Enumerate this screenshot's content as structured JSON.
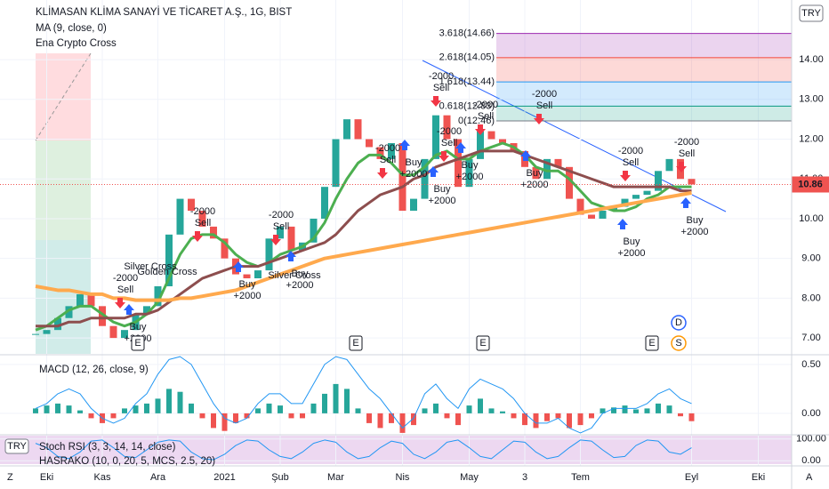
{
  "header": {
    "title": "KLİMASAN KLİMA SANAYİ VE TİCARET A.Ş., 1G, BIST",
    "indicators": [
      "MA (9, close, 0)",
      "Ena Crypto Cross"
    ],
    "currency": "TRY",
    "corner_left": "Z",
    "corner_right": "A"
  },
  "chart_data": [
    {
      "type": "candle-line",
      "categories": [
        null,
        "Eki",
        null,
        null,
        null,
        null,
        "Kas",
        null,
        null,
        null,
        null,
        "Ara",
        null,
        null,
        null,
        null,
        null,
        "2021",
        null,
        null,
        null,
        null,
        "Şub",
        null,
        null,
        null,
        null,
        "Mar",
        null,
        null,
        null,
        null,
        null,
        "Nis",
        null,
        null,
        null,
        null,
        null,
        "May",
        null,
        null,
        null,
        null,
        "3",
        null,
        null,
        null,
        null,
        "Tem",
        null,
        null,
        null,
        null,
        null,
        null,
        null,
        null,
        null,
        "Eyl",
        null,
        null,
        null,
        null,
        null,
        "Eki",
        null,
        null,
        null
      ],
      "ylim": [
        6.6,
        15.5
      ],
      "yticks": [
        {
          "value": 7,
          "label": "7.00"
        },
        {
          "value": 8,
          "label": "8.00"
        },
        {
          "value": 9,
          "label": "9.00"
        },
        {
          "value": 10,
          "label": "10.00"
        },
        {
          "value": 11,
          "label": "11.00"
        },
        {
          "value": 12,
          "label": "12.00"
        },
        {
          "value": 13,
          "label": "13.00"
        },
        {
          "value": 14,
          "label": "14.00"
        }
      ],
      "series": [
        {
          "kind": "candle",
          "color": "#ef5350",
          "up_color": "#26a69a",
          "values": [
            7.1,
            7.2,
            7.5,
            7.8,
            8.1,
            7.8,
            7.3,
            7.0,
            7.2,
            7.6,
            7.8,
            8.3,
            9.6,
            10.5,
            10.2,
            9.8,
            9.5,
            9.0,
            8.6,
            8.5,
            8.7,
            9.5,
            9.8,
            9.2,
            9.4,
            10.0,
            10.8,
            12.0,
            12.5,
            12.0,
            11.8,
            11.5,
            11.9,
            10.2,
            10.5,
            11.5,
            12.6,
            12.0,
            10.8,
            11.5,
            12.2,
            12.0,
            11.9,
            11.7,
            11.3,
            11.0,
            11.5,
            11.3,
            10.5,
            10.1,
            10.0,
            10.2,
            10.3,
            10.5,
            10.6,
            10.7,
            11.2,
            11.5,
            11.0,
            10.86,
            null,
            null,
            null,
            null,
            null,
            null,
            null,
            null,
            null
          ]
        },
        {
          "kind": "line",
          "color": "#4caf50",
          "width": 3,
          "values": [
            7.2,
            7.3,
            7.5,
            7.7,
            7.8,
            7.8,
            7.6,
            7.4,
            7.3,
            7.4,
            7.6,
            7.9,
            8.5,
            9.1,
            9.5,
            9.6,
            9.6,
            9.4,
            9.1,
            8.9,
            8.8,
            8.9,
            9.1,
            9.2,
            9.3,
            9.5,
            9.9,
            10.5,
            11.0,
            11.4,
            11.6,
            11.6,
            11.4,
            11.1,
            11.1,
            11.3,
            11.6,
            11.7,
            11.5,
            11.5,
            11.7,
            11.8,
            11.9,
            11.8,
            11.6,
            11.3,
            11.2,
            11.2,
            11.0,
            10.7,
            10.4,
            10.3,
            10.2,
            10.2,
            10.3,
            10.5,
            10.6,
            10.8,
            10.8,
            10.8,
            null,
            null,
            null,
            null,
            null,
            null,
            null,
            null,
            null
          ]
        },
        {
          "kind": "line",
          "color": "#8d4e4e",
          "width": 3,
          "values": [
            7.3,
            7.3,
            7.3,
            7.4,
            7.4,
            7.5,
            7.5,
            7.5,
            7.5,
            7.6,
            7.6,
            7.7,
            7.9,
            8.1,
            8.3,
            8.5,
            8.6,
            8.7,
            8.8,
            8.8,
            8.8,
            8.9,
            9.0,
            9.1,
            9.2,
            9.3,
            9.4,
            9.6,
            9.9,
            10.2,
            10.4,
            10.6,
            10.7,
            10.8,
            11.0,
            11.1,
            11.3,
            11.4,
            11.5,
            11.6,
            11.7,
            11.7,
            11.7,
            11.7,
            11.6,
            11.5,
            11.4,
            11.3,
            11.2,
            11.1,
            11.0,
            10.9,
            10.8,
            10.8,
            10.8,
            10.8,
            10.8,
            10.8,
            10.7,
            10.7,
            null,
            null,
            null,
            null,
            null,
            null,
            null,
            null,
            null
          ]
        },
        {
          "kind": "line",
          "color": "#ffa94d",
          "width": 4,
          "values": [
            8.3,
            8.25,
            8.2,
            8.2,
            8.15,
            8.1,
            8.1,
            8.0,
            8.0,
            7.95,
            7.95,
            7.95,
            7.95,
            8.0,
            8.0,
            8.05,
            8.1,
            8.15,
            8.2,
            8.3,
            8.4,
            8.5,
            8.6,
            8.7,
            8.8,
            8.9,
            9.0,
            9.05,
            9.1,
            9.15,
            9.2,
            9.25,
            9.3,
            9.35,
            9.4,
            9.45,
            9.5,
            9.55,
            9.6,
            9.65,
            9.7,
            9.75,
            9.8,
            9.85,
            9.9,
            9.95,
            10.0,
            10.05,
            10.1,
            10.15,
            10.2,
            10.25,
            10.3,
            10.35,
            10.4,
            10.45,
            10.5,
            10.55,
            10.6,
            10.65,
            null,
            null,
            null,
            null,
            null,
            null,
            null,
            null,
            null
          ]
        }
      ],
      "fib_levels": [
        {
          "label": "3.618(14.66)",
          "value": 14.66,
          "color": "#9c27b0"
        },
        {
          "label": "2.618(14.05)",
          "value": 14.05,
          "color": "#f44336"
        },
        {
          "label": "1.618(13.44)",
          "value": 13.44,
          "color": "#2196f3"
        },
        {
          "label": "0.618(12.83)",
          "value": 12.83,
          "color": "#089981"
        },
        {
          "label": "0(12.46)",
          "value": 12.46,
          "color": "#787b86"
        }
      ],
      "annotations": [
        {
          "lines": [
            "-2000",
            "Sell"
          ]
        },
        {
          "lines": [
            "Buy",
            "+2000"
          ]
        },
        {
          "lines": [
            "-2000",
            "Sell"
          ]
        },
        {
          "lines": [
            "Buy",
            "+2000"
          ]
        },
        {
          "lines": [
            "-2000",
            "Sell"
          ]
        },
        {
          "lines": [
            "Buy",
            "+2000"
          ]
        },
        {
          "lines": [
            "-2000",
            "Sell"
          ]
        },
        {
          "lines": [
            "-2000",
            "Sell"
          ]
        },
        {
          "lines": [
            "Buy",
            "+2000"
          ]
        },
        {
          "lines": [
            "-2000",
            "Sell"
          ]
        },
        {
          "lines": [
            "Buy",
            "+2000"
          ]
        },
        {
          "lines": [
            "-2000",
            "Sell"
          ]
        },
        {
          "lines": [
            "Buy",
            "+2000"
          ]
        },
        {
          "lines": [
            "-2000",
            "Sell"
          ]
        },
        {
          "lines": [
            "Buy",
            "+2000"
          ]
        },
        {
          "lines": [
            "-2000",
            "Sell"
          ]
        },
        {
          "lines": [
            "Buy",
            "+2000"
          ]
        },
        {
          "lines": [
            "-2000",
            "Sell"
          ]
        },
        {
          "lines": [
            "Buy",
            "+2000"
          ]
        }
      ],
      "cross_labels": [
        "Silver Cross",
        "Golden Cross",
        "Silver Cross"
      ],
      "events": [
        "E",
        "E",
        "E",
        "E",
        "D",
        "S"
      ]
    },
    {
      "type": "macd",
      "title": "MACD (12, 26, close, 9)",
      "ylim": [
        -0.21,
        0.59
      ],
      "yticks": [
        {
          "value": 0,
          "label": "0.00"
        },
        {
          "value": 0.5,
          "label": "0.50"
        }
      ],
      "series": [
        {
          "kind": "hist",
          "color": "#ef5350",
          "up_color": "#26a69a",
          "values": [
            0.05,
            0.08,
            0.1,
            0.08,
            0.03,
            -0.05,
            -0.1,
            -0.05,
            0.05,
            0.08,
            0.1,
            0.15,
            0.25,
            0.22,
            0.1,
            -0.05,
            -0.15,
            -0.18,
            -0.1,
            -0.05,
            0.05,
            0.1,
            0.08,
            -0.05,
            -0.05,
            0.1,
            0.2,
            0.3,
            0.25,
            0.05,
            -0.1,
            -0.15,
            -0.1,
            -0.2,
            -0.12,
            0.05,
            0.1,
            -0.05,
            -0.12,
            0.08,
            0.15,
            0.05,
            0.02,
            -0.05,
            -0.12,
            -0.15,
            -0.08,
            -0.05,
            -0.15,
            -0.12,
            -0.05,
            0.05,
            0.06,
            0.08,
            0.04,
            0.05,
            0.1,
            0.08,
            -0.03,
            -0.08
          ]
        },
        {
          "kind": "line",
          "color": "#2196f3",
          "width": 1,
          "values": [
            0.05,
            0.1,
            0.2,
            0.25,
            0.2,
            0.05,
            -0.05,
            -0.1,
            -0.05,
            0.1,
            0.2,
            0.4,
            0.55,
            0.58,
            0.5,
            0.3,
            0.1,
            -0.05,
            -0.1,
            -0.05,
            0.1,
            0.2,
            0.2,
            0.1,
            0.1,
            0.3,
            0.5,
            0.58,
            0.55,
            0.4,
            0.25,
            0.15,
            0.0,
            -0.15,
            -0.05,
            0.2,
            0.3,
            0.15,
            0.05,
            0.25,
            0.35,
            0.3,
            0.25,
            0.15,
            0.0,
            -0.1,
            -0.1,
            -0.05,
            -0.15,
            -0.2,
            -0.15,
            0.0,
            0.05,
            0.05,
            0.05,
            0.1,
            0.2,
            0.25,
            0.15,
            0.1
          ]
        }
      ]
    },
    {
      "type": "stoch",
      "title": "Stoch RSI (3, 3, 14, 14, close)",
      "subtitle": "HASRAKO (10, 0, 20, 5, MCS, 2.5, 20)",
      "ylim": [
        -15,
        115
      ],
      "yticks": [
        {
          "value": 0,
          "label": "0.00"
        },
        {
          "value": 100,
          "label": "100.00"
        }
      ],
      "series": [
        {
          "kind": "line",
          "color": "#2196f3",
          "width": 1,
          "values": [
            80,
            60,
            20,
            10,
            40,
            90,
            95,
            60,
            20,
            15,
            50,
            85,
            95,
            90,
            40,
            10,
            5,
            30,
            70,
            95,
            90,
            50,
            20,
            10,
            40,
            80,
            95,
            85,
            40,
            10,
            20,
            60,
            90,
            80,
            30,
            10,
            40,
            85,
            95,
            60,
            20,
            10,
            50,
            90,
            85,
            40,
            10,
            20,
            60,
            95,
            90,
            50,
            15,
            20,
            70,
            95,
            90,
            40,
            30,
            60
          ]
        }
      ]
    }
  ]
}
